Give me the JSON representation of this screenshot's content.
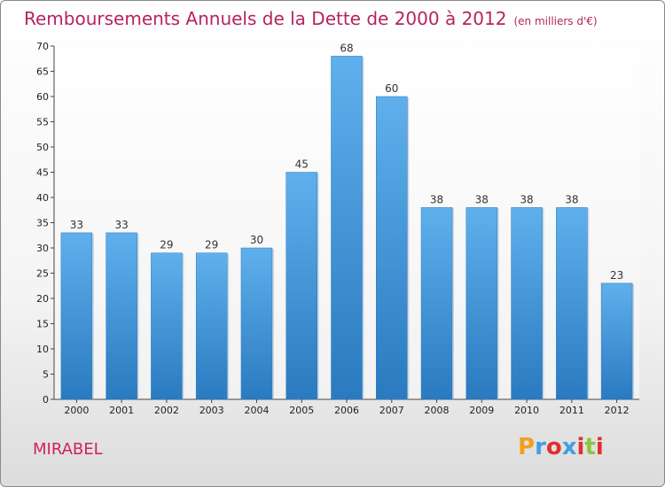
{
  "header": {
    "title": "Remboursements Annuels de la Dette de 2000 à 2012",
    "subtitle": "(en milliers d'€)"
  },
  "commune": "MIRABEL",
  "logo": {
    "letters": [
      "P",
      "r",
      "o",
      "x",
      "i",
      "t",
      "i"
    ],
    "colors": [
      "#f0a020",
      "#3fa0dd",
      "#e03030",
      "#3fa0dd",
      "#e03030",
      "#8bc53f",
      "#e03030"
    ]
  },
  "chart_data": {
    "type": "bar",
    "title": "Remboursements Annuels de la Dette de 2000 à 2012",
    "subtitle": "(en milliers d'€)",
    "categories": [
      "2000",
      "2001",
      "2002",
      "2003",
      "2004",
      "2005",
      "2006",
      "2007",
      "2008",
      "2009",
      "2010",
      "2011",
      "2012"
    ],
    "values": [
      33,
      33,
      29,
      29,
      30,
      45,
      68,
      60,
      38,
      38,
      38,
      38,
      23
    ],
    "ylim": [
      0,
      70
    ],
    "yticks": [
      0,
      5,
      10,
      15,
      20,
      25,
      30,
      35,
      40,
      45,
      50,
      55,
      60,
      65,
      70
    ],
    "grid": false,
    "bar_color": "#3d8fd6"
  }
}
